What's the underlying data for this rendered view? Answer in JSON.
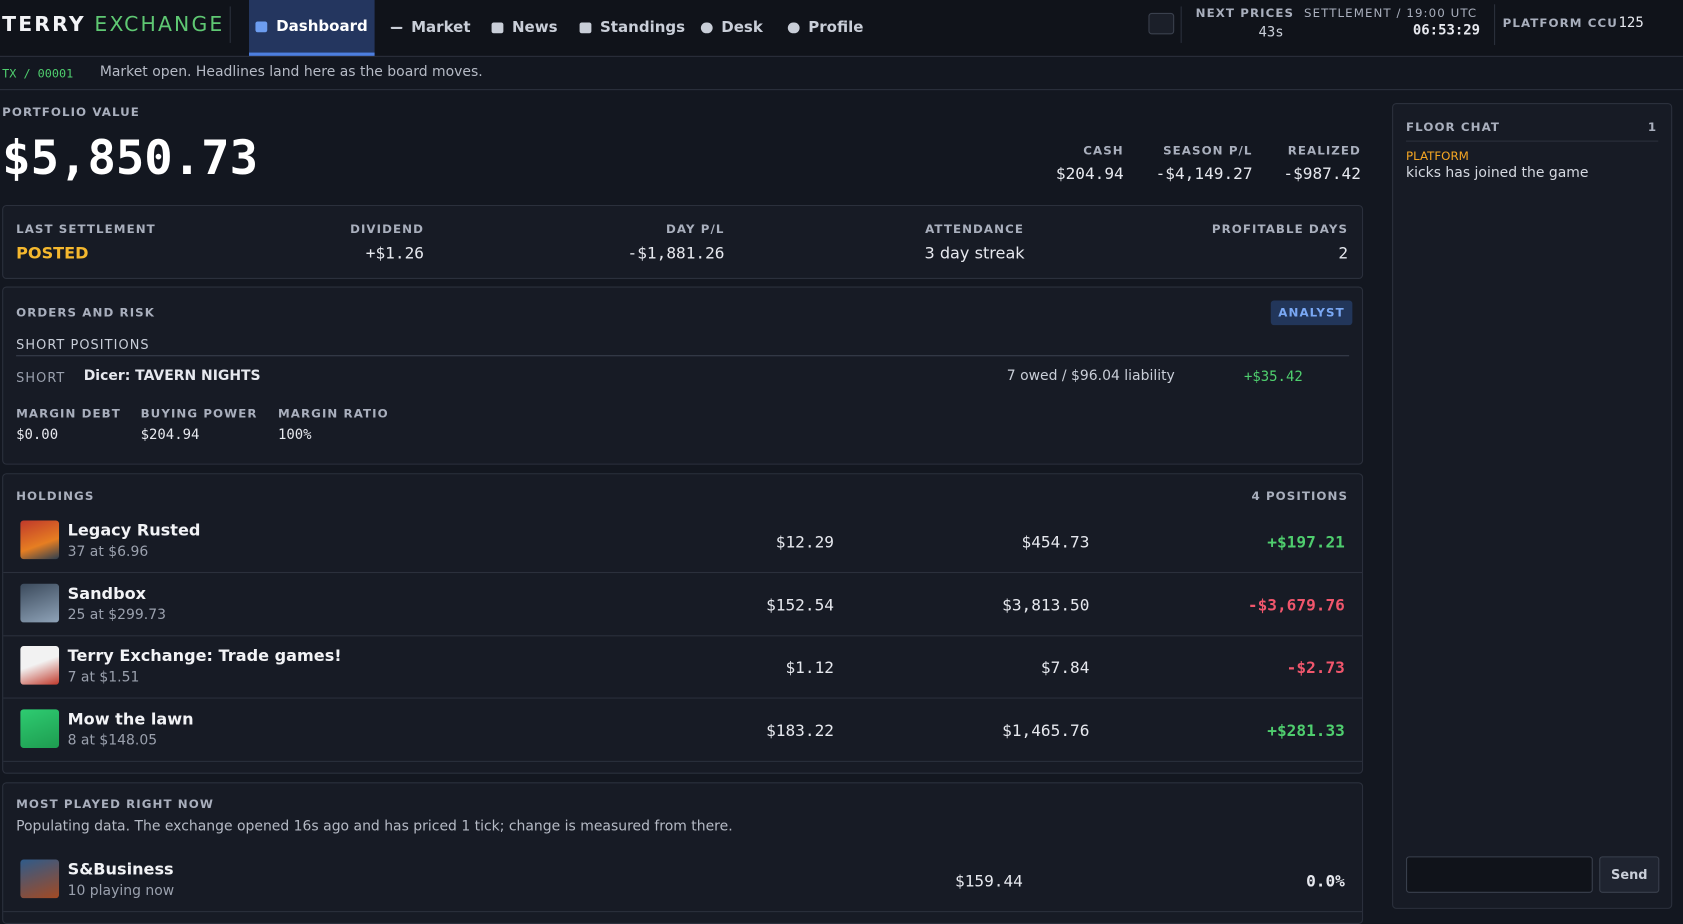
{
  "header": {
    "brand_a": "TERRY",
    "brand_b": "EXCHANGE",
    "nav": [
      "Dashboard",
      "Market",
      "News",
      "Standings",
      "Desk",
      "Profile"
    ],
    "next_prices_label": "NEXT PRICES",
    "next_prices": "43s",
    "settlement_label": "SETTLEMENT / 19:00 UTC",
    "settlement_time": "06:53:29",
    "ccu_label": "PLATFORM CCU",
    "ccu": "125"
  },
  "ticker": {
    "id": "TX / 00001",
    "text": "Market open. Headlines land here as the board moves."
  },
  "portfolio": {
    "label": "PORTFOLIO VALUE",
    "value": "$5,850.73",
    "stats": [
      {
        "label": "CASH",
        "value": "$204.94"
      },
      {
        "label": "SEASON P/L",
        "value": "-$4,149.27"
      },
      {
        "label": "REALIZED",
        "value": "-$987.42"
      }
    ]
  },
  "settlement": [
    {
      "label": "LAST SETTLEMENT",
      "value": "POSTED"
    },
    {
      "label": "DIVIDEND",
      "value": "+$1.26"
    },
    {
      "label": "DAY P/L",
      "value": "-$1,881.26"
    },
    {
      "label": "ATTENDANCE",
      "value": "3 day streak"
    },
    {
      "label": "PROFITABLE DAYS",
      "value": "2"
    }
  ],
  "orders": {
    "title": "ORDERS AND RISK",
    "badge": "ANALYST",
    "short_title": "SHORT POSITIONS",
    "short": {
      "kind": "SHORT",
      "name": "Dicer: TAVERN NIGHTS",
      "detail": "7 owed / $96.04 liability",
      "pl": "+$35.42"
    },
    "metrics": [
      {
        "label": "MARGIN DEBT",
        "value": "$0.00"
      },
      {
        "label": "BUYING POWER",
        "value": "$204.94"
      },
      {
        "label": "MARGIN RATIO",
        "value": "100%"
      }
    ]
  },
  "holdings": {
    "title": "HOLDINGS",
    "count": "4 POSITIONS",
    "rows": [
      {
        "name": "Legacy Rusted",
        "detail": "37 at $6.96",
        "price": "$12.29",
        "value": "$454.73",
        "pl": "+$197.21"
      },
      {
        "name": "Sandbox",
        "detail": "25 at $299.73",
        "price": "$152.54",
        "value": "$3,813.50",
        "pl": "-$3,679.76"
      },
      {
        "name": "Terry Exchange: Trade games!",
        "detail": "7 at $1.51",
        "price": "$1.12",
        "value": "$7.84",
        "pl": "-$2.73"
      },
      {
        "name": "Mow the lawn",
        "detail": "8 at $148.05",
        "price": "$183.22",
        "value": "$1,465.76",
        "pl": "+$281.33"
      }
    ]
  },
  "most_played": {
    "title": "MOST PLAYED RIGHT NOW",
    "note": "Populating data. The exchange opened 16s ago and has priced 1 tick; change is measured from there.",
    "rows": [
      {
        "name": "S&Business",
        "detail": "10 playing now",
        "price": "$159.44",
        "change": "0.0%"
      }
    ]
  },
  "chat": {
    "title": "FLOOR CHAT",
    "count": "1",
    "messages": [
      {
        "author": "PLATFORM",
        "text": "kicks has joined the game"
      }
    ],
    "send": "Send"
  }
}
